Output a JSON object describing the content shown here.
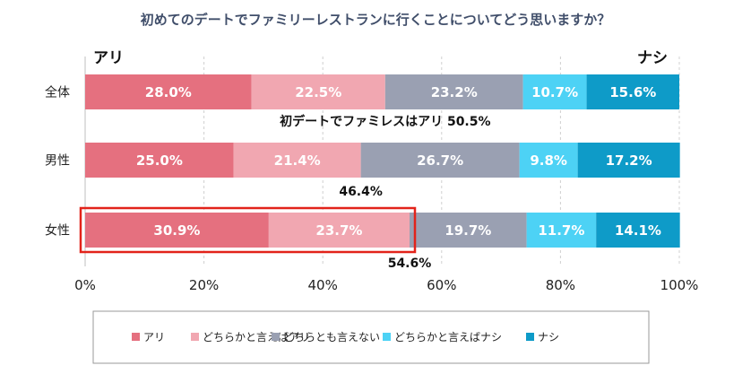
{
  "chart_data": {
    "type": "bar",
    "orientation": "horizontal-stacked-100",
    "title": "初めてのデートでファミリーレストランに行くことについてどう思いますか？",
    "left_end_label": "アリ",
    "right_end_label": "ナシ",
    "categories": [
      "全体",
      "男性",
      "女性"
    ],
    "series": [
      {
        "name": "アリ",
        "color": "#e5707f",
        "values": [
          28.0,
          25.0,
          30.9
        ]
      },
      {
        "name": "どちらかと言えばアリ",
        "color": "#f1a7b1",
        "values": [
          22.5,
          21.4,
          23.7
        ]
      },
      {
        "name": "どちらとも言えない",
        "color": "#9aa0b2",
        "values": [
          23.2,
          26.7,
          19.7
        ]
      },
      {
        "name": "どちらかと言えばナシ",
        "color": "#4dd2f5",
        "values": [
          10.7,
          9.8,
          11.7
        ]
      },
      {
        "name": "ナシ",
        "color": "#0e9bc8",
        "values": [
          15.6,
          17.2,
          14.1
        ]
      }
    ],
    "value_suffix": "%",
    "xlim": [
      0,
      100
    ],
    "xticks": [
      "0%",
      "20%",
      "40%",
      "60%",
      "80%",
      "100%"
    ],
    "annotations": [
      {
        "category": "全体",
        "prefix": "初デートでファミレスはアリ",
        "value": "50.5%"
      },
      {
        "category": "男性",
        "prefix": "",
        "value": "46.4%"
      },
      {
        "category": "女性",
        "prefix": "",
        "value": "54.6%"
      }
    ],
    "highlight_category": "女性",
    "legend_position": "bottom"
  }
}
